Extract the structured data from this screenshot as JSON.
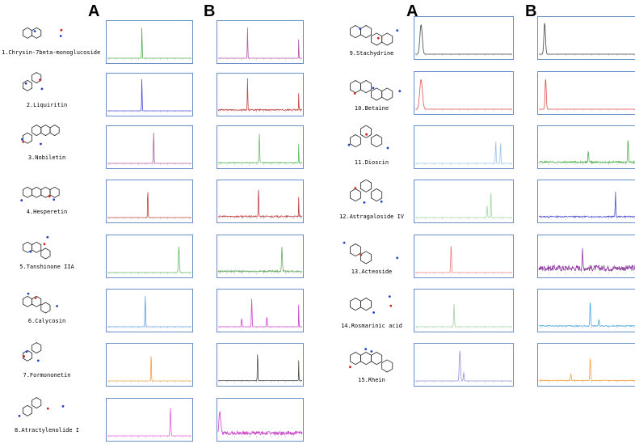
{
  "headers": {
    "left_a": "A",
    "left_b": "B",
    "right_a": "A",
    "right_b": "B"
  },
  "colors": {
    "frame": "#6a8fca"
  },
  "compounds": [
    {
      "label": "1.Chrysin-7beta-monoglucoside",
      "structure_icon": "flavone-glucoside-structure",
      "a": {
        "color": "#4fb04f",
        "peaks": [
          {
            "x": 0.41,
            "h": 0.92,
            "w": 0.003
          }
        ],
        "noise": 0.0
      },
      "b": {
        "color": "#b15aa3",
        "peaks": [
          {
            "x": 0.35,
            "h": 0.88,
            "w": 0.003
          },
          {
            "x": 0.96,
            "h": 0.6,
            "w": 0.002
          }
        ],
        "noise": 0.0
      }
    },
    {
      "label": "2.Liquiritin",
      "structure_icon": "flavanone-glucoside-structure",
      "a": {
        "color": "#4a4ad6",
        "peaks": [
          {
            "x": 0.41,
            "h": 0.95,
            "w": 0.003
          }
        ],
        "noise": 0.0
      },
      "b": {
        "color": "#c04848",
        "peaks": [
          {
            "x": 0.35,
            "h": 0.9,
            "w": 0.003
          },
          {
            "x": 0.96,
            "h": 0.55,
            "w": 0.002
          }
        ],
        "noise": 0.06
      }
    },
    {
      "label": "3.Nobiletin",
      "structure_icon": "polymethoxyflavone-structure",
      "a": {
        "color": "#b15aa3",
        "peaks": [
          {
            "x": 0.55,
            "h": 0.88,
            "w": 0.004
          }
        ],
        "noise": 0.0
      },
      "b": {
        "color": "#62bf62",
        "peaks": [
          {
            "x": 0.49,
            "h": 0.85,
            "w": 0.004
          },
          {
            "x": 0.96,
            "h": 0.6,
            "w": 0.002
          }
        ],
        "noise": 0.04
      }
    },
    {
      "label": "4.Hesperetin",
      "structure_icon": "flavanone-structure",
      "a": {
        "color": "#c84040",
        "peaks": [
          {
            "x": 0.48,
            "h": 0.88,
            "w": 0.003
          }
        ],
        "noise": 0.0
      },
      "b": {
        "color": "#c04848",
        "peaks": [
          {
            "x": 0.48,
            "h": 0.9,
            "w": 0.003
          },
          {
            "x": 0.96,
            "h": 0.6,
            "w": 0.002
          }
        ],
        "noise": 0.07
      }
    },
    {
      "label": "5.Tanshinone IIA",
      "structure_icon": "diterpenoid-quinone-structure",
      "a": {
        "color": "#5fbf5f",
        "peaks": [
          {
            "x": 0.85,
            "h": 0.75,
            "w": 0.006
          }
        ],
        "noise": 0.0
      },
      "b": {
        "color": "#6aab6a",
        "peaks": [
          {
            "x": 0.76,
            "h": 0.7,
            "w": 0.005
          }
        ],
        "noise": 0.08
      }
    },
    {
      "label": "6.Calycosin",
      "structure_icon": "isoflavone-structure",
      "a": {
        "color": "#5aa0e0",
        "peaks": [
          {
            "x": 0.45,
            "h": 0.88,
            "w": 0.004
          }
        ],
        "noise": 0.0
      },
      "b": {
        "color": "#cc44cc",
        "peaks": [
          {
            "x": 0.4,
            "h": 0.8,
            "w": 0.004
          },
          {
            "x": 0.28,
            "h": 0.25,
            "w": 0.004
          },
          {
            "x": 0.58,
            "h": 0.3,
            "w": 0.004
          },
          {
            "x": 0.96,
            "h": 0.7,
            "w": 0.002
          }
        ],
        "noise": 0.0
      }
    },
    {
      "label": "7.Formononetin",
      "structure_icon": "isoflavone-methoxy-structure",
      "a": {
        "color": "#f0a040",
        "peaks": [
          {
            "x": 0.52,
            "h": 0.85,
            "w": 0.003
          }
        ],
        "noise": 0.0
      },
      "b": {
        "color": "#555555",
        "peaks": [
          {
            "x": 0.47,
            "h": 0.9,
            "w": 0.003
          },
          {
            "x": 0.96,
            "h": 0.65,
            "w": 0.002
          }
        ],
        "noise": 0.02
      }
    },
    {
      "label": "8.Atractylenolide I",
      "structure_icon": "sesquiterpene-lactone-structure",
      "a": {
        "color": "#e060e0",
        "peaks": [
          {
            "x": 0.75,
            "h": 0.8,
            "w": 0.005
          }
        ],
        "noise": 0.0
      },
      "b": {
        "color": "#cc44cc",
        "peaks": [
          {
            "x": 0.02,
            "h": 0.6,
            "w": 0.01
          }
        ],
        "noise": 0.18
      }
    },
    {
      "label": "9.Stachydrine",
      "structure_icon": "pyrrolidinium-betaine-structure",
      "a": {
        "color": "#444444",
        "peaks": [
          {
            "x": 0.06,
            "h": 0.85,
            "w": 0.012
          }
        ],
        "noise": 0.0
      },
      "b": {
        "color": "#444444",
        "peaks": [
          {
            "x": 0.06,
            "h": 0.9,
            "w": 0.008
          }
        ],
        "noise": 0.0
      }
    },
    {
      "label": "10.Betaine",
      "structure_icon": "trimethylglycine-structure",
      "a": {
        "color": "#e05050",
        "peaks": [
          {
            "x": 0.06,
            "h": 0.85,
            "w": 0.014
          }
        ],
        "noise": 0.0
      },
      "b": {
        "color": "#e05050",
        "peaks": [
          {
            "x": 0.07,
            "h": 0.9,
            "w": 0.006
          }
        ],
        "noise": 0.0
      }
    },
    {
      "label": "11.Dioscin",
      "structure_icon": "steroidal-saponin-structure",
      "a": {
        "color": "#9bc3e8",
        "peaks": [
          {
            "x": 0.83,
            "h": 0.75,
            "w": 0.003
          },
          {
            "x": 0.88,
            "h": 0.7,
            "w": 0.003
          }
        ],
        "noise": 0.0
      },
      "b": {
        "color": "#4caf4c",
        "peaks": [
          {
            "x": 0.51,
            "h": 0.3,
            "w": 0.004
          },
          {
            "x": 0.92,
            "h": 0.7,
            "w": 0.004
          }
        ],
        "noise": 0.08
      }
    },
    {
      "label": "12.Astragaloside IV",
      "structure_icon": "triterpenoid-saponin-structure",
      "a": {
        "color": "#9ed89e",
        "peaks": [
          {
            "x": 0.74,
            "h": 0.35,
            "w": 0.004
          },
          {
            "x": 0.78,
            "h": 0.85,
            "w": 0.003
          }
        ],
        "noise": 0.0
      },
      "b": {
        "color": "#4f4fcf",
        "peaks": [
          {
            "x": 0.79,
            "h": 0.75,
            "w": 0.003
          }
        ],
        "noise": 0.06
      }
    },
    {
      "label": "13.Acteoside",
      "structure_icon": "phenylethanoid-glycoside-structure",
      "a": {
        "color": "#e88080",
        "peaks": [
          {
            "x": 0.37,
            "h": 0.85,
            "w": 0.004
          }
        ],
        "noise": 0.0
      },
      "b": {
        "color": "#8a3a9a",
        "peaks": [
          {
            "x": 0.45,
            "h": 0.5,
            "w": 0.004
          }
        ],
        "noise": 0.28
      }
    },
    {
      "label": "14.Rosmarinic acid",
      "structure_icon": "caffeic-ester-structure",
      "a": {
        "color": "#a0cfa0",
        "peaks": [
          {
            "x": 0.4,
            "h": 0.65,
            "w": 0.004
          }
        ],
        "noise": 0.0
      },
      "b": {
        "color": "#4aa8e0",
        "peaks": [
          {
            "x": 0.53,
            "h": 0.75,
            "w": 0.004
          },
          {
            "x": 0.62,
            "h": 0.2,
            "w": 0.004
          }
        ],
        "noise": 0.05
      }
    },
    {
      "label": "15.Rhein",
      "structure_icon": "anthraquinone-structure",
      "a": {
        "color": "#9090e0",
        "peaks": [
          {
            "x": 0.46,
            "h": 0.88,
            "w": 0.006
          },
          {
            "x": 0.5,
            "h": 0.25,
            "w": 0.004
          }
        ],
        "noise": 0.0
      },
      "b": {
        "color": "#f0a040",
        "peaks": [
          {
            "x": 0.53,
            "h": 0.7,
            "w": 0.004
          },
          {
            "x": 0.33,
            "h": 0.2,
            "w": 0.004
          }
        ],
        "noise": 0.03
      }
    }
  ]
}
